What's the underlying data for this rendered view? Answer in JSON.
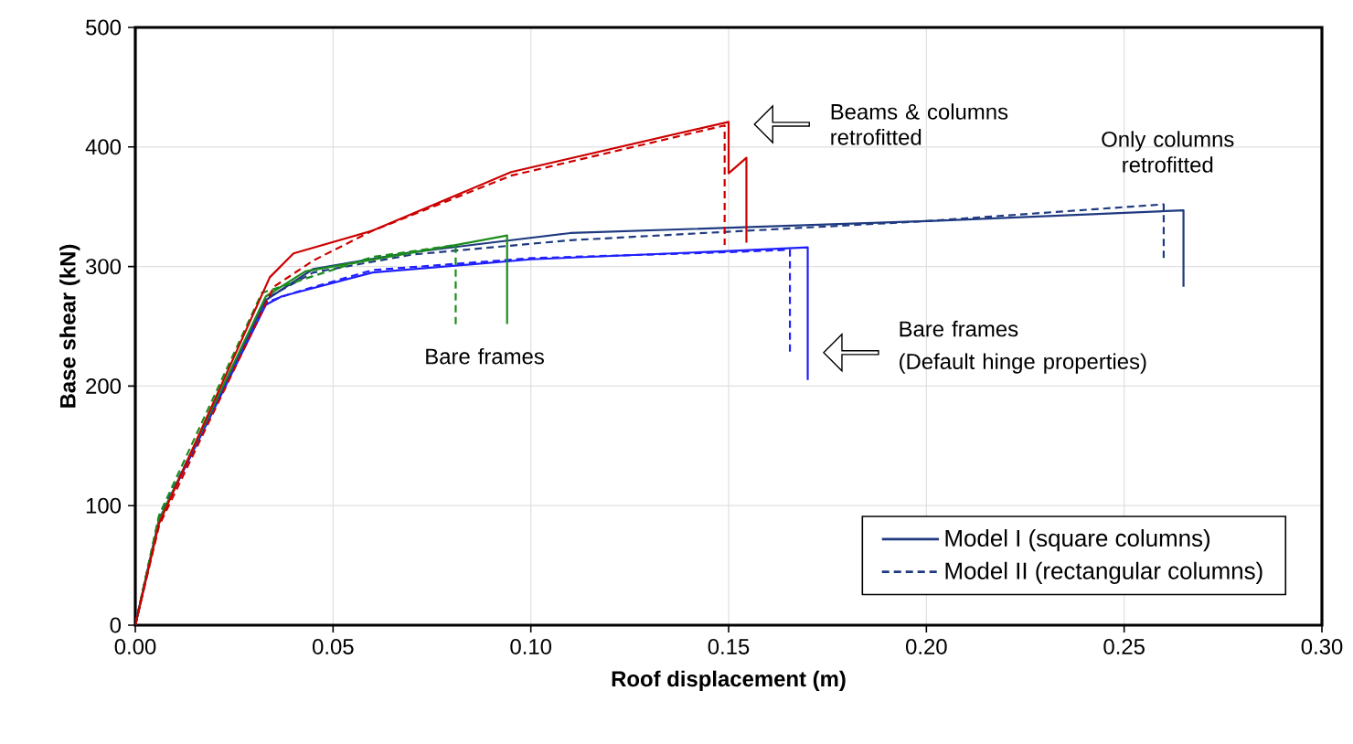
{
  "chart_data": {
    "type": "line",
    "xlabel": "Roof displacement (m)",
    "ylabel": "Base shear (kN)",
    "xlim": [
      0,
      0.3
    ],
    "ylim": [
      0,
      500
    ],
    "xticks": [
      {
        "value": 0,
        "label": "0.00"
      },
      {
        "value": 0.05,
        "label": "0.05"
      },
      {
        "value": 0.1,
        "label": "0.10"
      },
      {
        "value": 0.15,
        "label": "0.15"
      },
      {
        "value": 0.2,
        "label": "0.20"
      },
      {
        "value": 0.25,
        "label": "0.25"
      },
      {
        "value": 0.3,
        "label": "0.30"
      }
    ],
    "yticks": [
      0,
      100,
      200,
      300,
      400,
      500
    ],
    "grid": true,
    "legend": "bottom right",
    "marker": "none",
    "series": [
      {
        "name": "Model I (square columns)",
        "color": "#1f3a80",
        "line_style": "solid",
        "x": [
          0,
          0.006,
          0.033,
          0.045,
          0.07,
          0.11,
          0.2,
          0.265,
          0.265
        ],
        "values": [
          0,
          88,
          272,
          298,
          312,
          328,
          338,
          347,
          283
        ]
      },
      {
        "name": "Model II (rectangular columns)",
        "color": "#1f3a80",
        "line_style": "dashed",
        "x": [
          0,
          0.006,
          0.034,
          0.045,
          0.07,
          0.11,
          0.2,
          0.26,
          0.26
        ],
        "values": [
          0,
          90,
          275,
          295,
          310,
          322,
          338,
          352,
          304
        ]
      },
      {
        "color": "#1f1fff",
        "line_style": "solid",
        "x": [
          0,
          0.006,
          0.033,
          0.037,
          0.06,
          0.1,
          0.15,
          0.17,
          0.17
        ],
        "values": [
          0,
          88,
          268,
          275,
          295,
          306,
          313,
          316,
          205
        ]
      },
      {
        "color": "#1f1fff",
        "line_style": "dashed",
        "x": [
          0,
          0.006,
          0.033,
          0.04,
          0.06,
          0.1,
          0.15,
          0.1655,
          0.1655
        ],
        "values": [
          0,
          90,
          270,
          278,
          297,
          307,
          312,
          314,
          228
        ]
      },
      {
        "color": "#1a8c1a",
        "line_style": "solid",
        "x": [
          0,
          0.006,
          0.033,
          0.043,
          0.081,
          0.094,
          0.094
        ],
        "values": [
          0,
          88,
          275,
          296,
          318,
          326,
          252
        ]
      },
      {
        "color": "#1a8c1a",
        "line_style": "dashed",
        "x": [
          0,
          0.006,
          0.032,
          0.045,
          0.06,
          0.081,
          0.081
        ],
        "values": [
          0,
          92,
          278,
          292,
          308,
          318,
          248
        ]
      },
      {
        "color": "#cc0000",
        "line_style": "solid",
        "x": [
          0,
          0.006,
          0.034,
          0.04,
          0.06,
          0.095,
          0.15,
          0.15,
          0.1545,
          0.1545
        ],
        "values": [
          0,
          85,
          291,
          311,
          330,
          379,
          421,
          378,
          391,
          320
        ]
      },
      {
        "color": "#cc0000",
        "line_style": "dashed",
        "x": [
          0,
          0.006,
          0.035,
          0.045,
          0.06,
          0.095,
          0.149,
          0.149
        ],
        "values": [
          0,
          83,
          283,
          305,
          330,
          376,
          418,
          318
        ]
      }
    ],
    "annotations": [
      "Beams & columns retrofitted",
      {
        "text": "Only columns retrofitted",
        "x": 0.265,
        "y": 347
      },
      {
        "text": "Bare frames",
        "x": 0.094,
        "y": 252
      },
      "Bare frames",
      "(Default hinge properties)"
    ]
  }
}
